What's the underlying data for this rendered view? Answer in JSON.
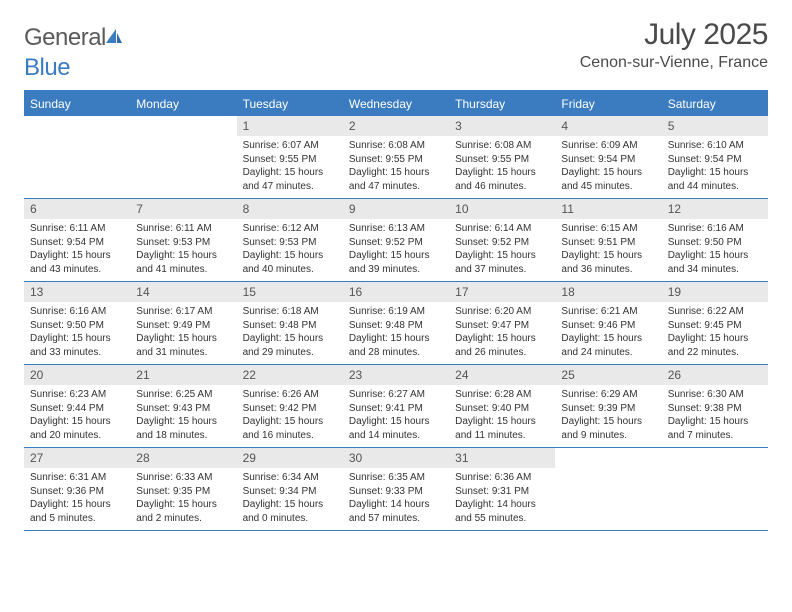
{
  "logo": {
    "general": "General",
    "blue": "Blue"
  },
  "title": "July 2025",
  "location": "Cenon-sur-Vienne, France",
  "colors": {
    "header_bg": "#3b7bbf",
    "header_text": "#ffffff",
    "daynum_bg": "#e9e9e9",
    "text": "#333333",
    "logo_gray": "#5a5a5a",
    "logo_blue": "#3b7bbf"
  },
  "day_names": [
    "Sunday",
    "Monday",
    "Tuesday",
    "Wednesday",
    "Thursday",
    "Friday",
    "Saturday"
  ],
  "weeks": [
    [
      {
        "empty": true
      },
      {
        "empty": true
      },
      {
        "n": "1",
        "sunrise": "6:07 AM",
        "sunset": "9:55 PM",
        "daylight": "15 hours and 47 minutes."
      },
      {
        "n": "2",
        "sunrise": "6:08 AM",
        "sunset": "9:55 PM",
        "daylight": "15 hours and 47 minutes."
      },
      {
        "n": "3",
        "sunrise": "6:08 AM",
        "sunset": "9:55 PM",
        "daylight": "15 hours and 46 minutes."
      },
      {
        "n": "4",
        "sunrise": "6:09 AM",
        "sunset": "9:54 PM",
        "daylight": "15 hours and 45 minutes."
      },
      {
        "n": "5",
        "sunrise": "6:10 AM",
        "sunset": "9:54 PM",
        "daylight": "15 hours and 44 minutes."
      }
    ],
    [
      {
        "n": "6",
        "sunrise": "6:11 AM",
        "sunset": "9:54 PM",
        "daylight": "15 hours and 43 minutes."
      },
      {
        "n": "7",
        "sunrise": "6:11 AM",
        "sunset": "9:53 PM",
        "daylight": "15 hours and 41 minutes."
      },
      {
        "n": "8",
        "sunrise": "6:12 AM",
        "sunset": "9:53 PM",
        "daylight": "15 hours and 40 minutes."
      },
      {
        "n": "9",
        "sunrise": "6:13 AM",
        "sunset": "9:52 PM",
        "daylight": "15 hours and 39 minutes."
      },
      {
        "n": "10",
        "sunrise": "6:14 AM",
        "sunset": "9:52 PM",
        "daylight": "15 hours and 37 minutes."
      },
      {
        "n": "11",
        "sunrise": "6:15 AM",
        "sunset": "9:51 PM",
        "daylight": "15 hours and 36 minutes."
      },
      {
        "n": "12",
        "sunrise": "6:16 AM",
        "sunset": "9:50 PM",
        "daylight": "15 hours and 34 minutes."
      }
    ],
    [
      {
        "n": "13",
        "sunrise": "6:16 AM",
        "sunset": "9:50 PM",
        "daylight": "15 hours and 33 minutes."
      },
      {
        "n": "14",
        "sunrise": "6:17 AM",
        "sunset": "9:49 PM",
        "daylight": "15 hours and 31 minutes."
      },
      {
        "n": "15",
        "sunrise": "6:18 AM",
        "sunset": "9:48 PM",
        "daylight": "15 hours and 29 minutes."
      },
      {
        "n": "16",
        "sunrise": "6:19 AM",
        "sunset": "9:48 PM",
        "daylight": "15 hours and 28 minutes."
      },
      {
        "n": "17",
        "sunrise": "6:20 AM",
        "sunset": "9:47 PM",
        "daylight": "15 hours and 26 minutes."
      },
      {
        "n": "18",
        "sunrise": "6:21 AM",
        "sunset": "9:46 PM",
        "daylight": "15 hours and 24 minutes."
      },
      {
        "n": "19",
        "sunrise": "6:22 AM",
        "sunset": "9:45 PM",
        "daylight": "15 hours and 22 minutes."
      }
    ],
    [
      {
        "n": "20",
        "sunrise": "6:23 AM",
        "sunset": "9:44 PM",
        "daylight": "15 hours and 20 minutes."
      },
      {
        "n": "21",
        "sunrise": "6:25 AM",
        "sunset": "9:43 PM",
        "daylight": "15 hours and 18 minutes."
      },
      {
        "n": "22",
        "sunrise": "6:26 AM",
        "sunset": "9:42 PM",
        "daylight": "15 hours and 16 minutes."
      },
      {
        "n": "23",
        "sunrise": "6:27 AM",
        "sunset": "9:41 PM",
        "daylight": "15 hours and 14 minutes."
      },
      {
        "n": "24",
        "sunrise": "6:28 AM",
        "sunset": "9:40 PM",
        "daylight": "15 hours and 11 minutes."
      },
      {
        "n": "25",
        "sunrise": "6:29 AM",
        "sunset": "9:39 PM",
        "daylight": "15 hours and 9 minutes."
      },
      {
        "n": "26",
        "sunrise": "6:30 AM",
        "sunset": "9:38 PM",
        "daylight": "15 hours and 7 minutes."
      }
    ],
    [
      {
        "n": "27",
        "sunrise": "6:31 AM",
        "sunset": "9:36 PM",
        "daylight": "15 hours and 5 minutes."
      },
      {
        "n": "28",
        "sunrise": "6:33 AM",
        "sunset": "9:35 PM",
        "daylight": "15 hours and 2 minutes."
      },
      {
        "n": "29",
        "sunrise": "6:34 AM",
        "sunset": "9:34 PM",
        "daylight": "15 hours and 0 minutes."
      },
      {
        "n": "30",
        "sunrise": "6:35 AM",
        "sunset": "9:33 PM",
        "daylight": "14 hours and 57 minutes."
      },
      {
        "n": "31",
        "sunrise": "6:36 AM",
        "sunset": "9:31 PM",
        "daylight": "14 hours and 55 minutes."
      },
      {
        "empty": true
      },
      {
        "empty": true
      }
    ]
  ],
  "labels": {
    "sunrise": "Sunrise:",
    "sunset": "Sunset:",
    "daylight": "Daylight:"
  }
}
